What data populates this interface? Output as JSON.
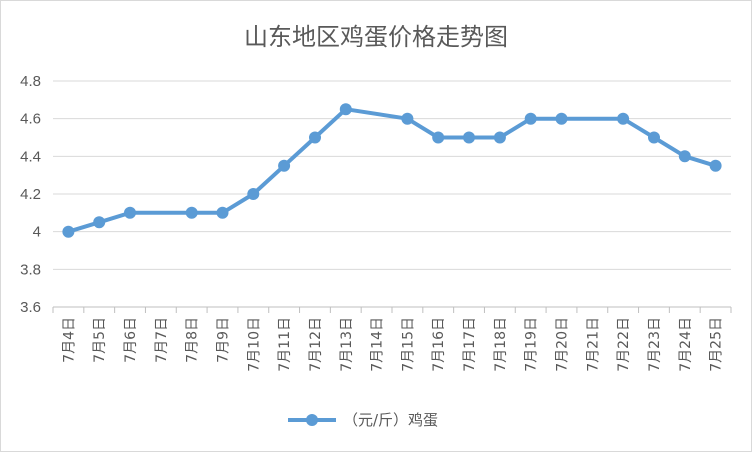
{
  "chart_data": {
    "type": "line",
    "title": "山东地区鸡蛋价格走势图",
    "categories": [
      "7月4日",
      "7月5日",
      "7月6日",
      "7月7日",
      "7月8日",
      "7月9日",
      "7月10日",
      "7月11日",
      "7月12日",
      "7月13日",
      "7月14日",
      "7月15日",
      "7月16日",
      "7月17日",
      "7月18日",
      "7月19日",
      "7月20日",
      "7月21日",
      "7月22日",
      "7月23日",
      "7月24日",
      "7月25日"
    ],
    "series": [
      {
        "name": "（元/斤）鸡蛋",
        "values": [
          4.0,
          4.05,
          4.1,
          null,
          4.1,
          4.1,
          4.2,
          4.35,
          4.5,
          4.65,
          null,
          4.6,
          4.5,
          4.5,
          4.5,
          4.6,
          4.6,
          null,
          4.6,
          4.5,
          4.4,
          4.35
        ]
      }
    ],
    "yticks": [
      "3.6",
      "3.8",
      "4",
      "4.2",
      "4.4",
      "4.6",
      "4.8"
    ],
    "ylim": [
      3.6,
      4.8
    ],
    "grid": true,
    "legend": "bottom",
    "color": "#5b9bd5"
  }
}
